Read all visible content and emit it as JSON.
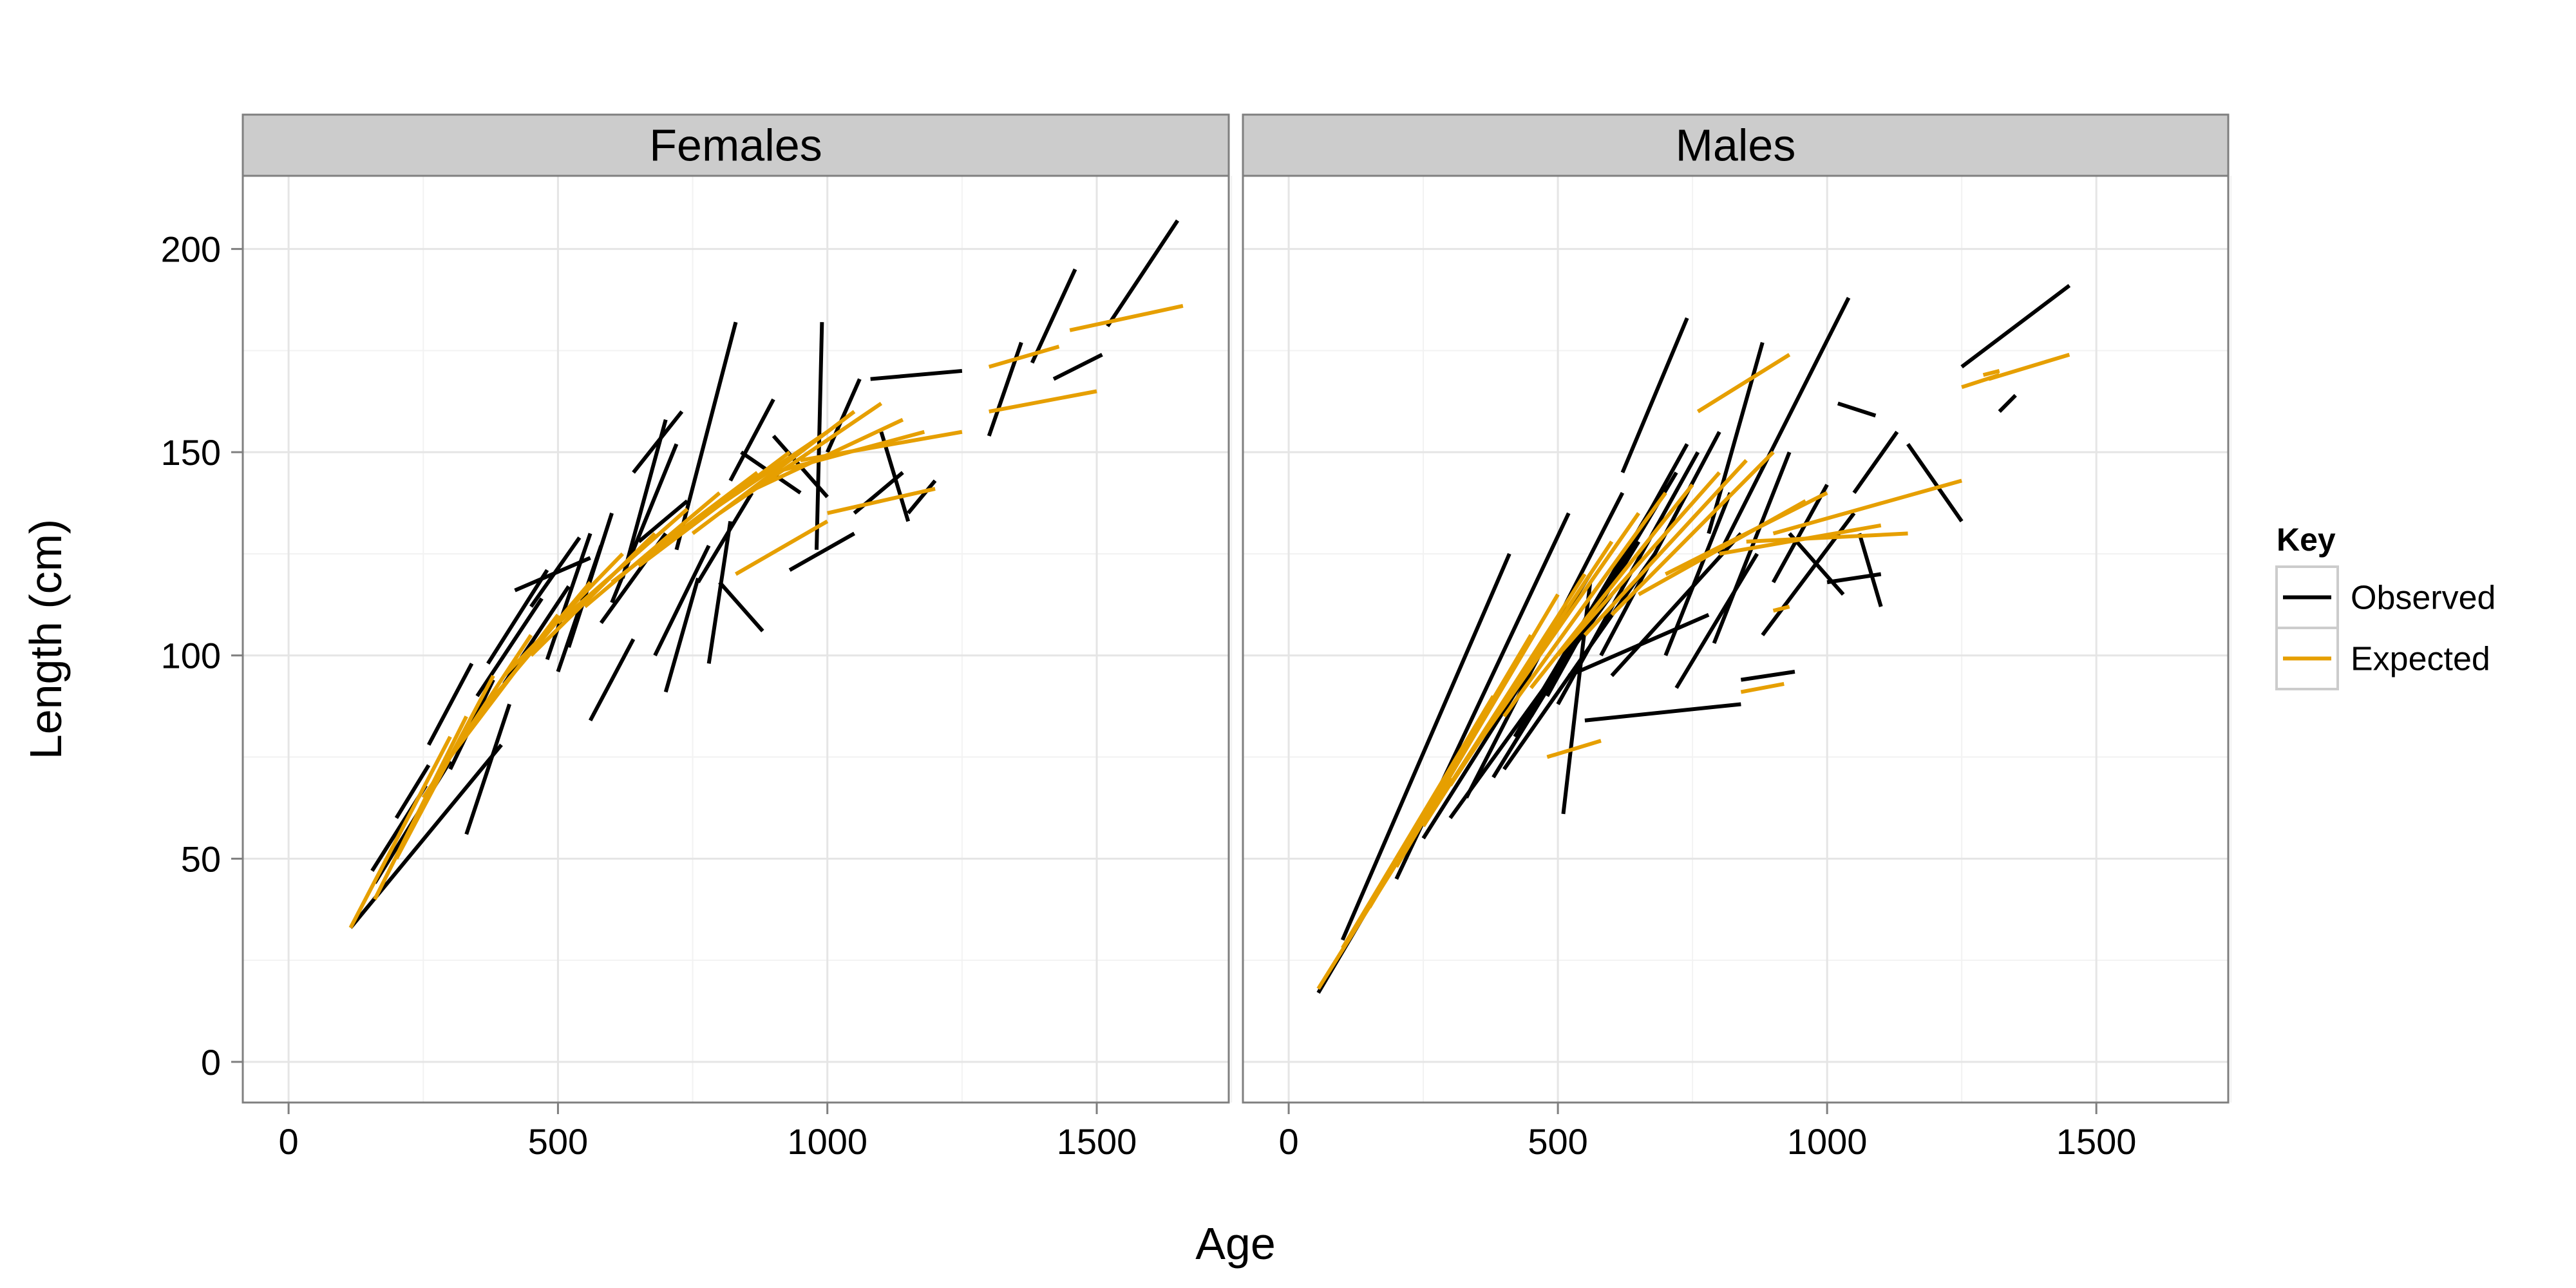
{
  "chart_data": {
    "type": "line",
    "facets": [
      "Females",
      "Males"
    ],
    "xlabel": "Age",
    "ylabel": "Length (cm)",
    "xlim": [
      -85,
      1745
    ],
    "ylim": [
      -10,
      218
    ],
    "x_ticks": [
      0,
      500,
      1000,
      1500
    ],
    "y_ticks": [
      0,
      50,
      100,
      150,
      200
    ],
    "grid": true,
    "legend": {
      "title": "Key",
      "position": "right",
      "entries": [
        {
          "name": "Observed",
          "color": "#000000"
        },
        {
          "name": "Expected",
          "color": "#E69F00"
        }
      ]
    },
    "panels": [
      {
        "name": "Females",
        "observed": [
          [
            [
              115,
              33
            ],
            [
              395,
              78
            ]
          ],
          [
            [
              155,
              47
            ],
            [
              255,
              68
            ]
          ],
          [
            [
              160,
              44
            ],
            [
              300,
              74
            ]
          ],
          [
            [
              200,
              60
            ],
            [
              260,
              73
            ]
          ],
          [
            [
              260,
              78
            ],
            [
              340,
              98
            ]
          ],
          [
            [
              300,
              72
            ],
            [
              380,
              94
            ]
          ],
          [
            [
              330,
              56
            ],
            [
              410,
              88
            ]
          ],
          [
            [
              350,
              90
            ],
            [
              470,
              114
            ]
          ],
          [
            [
              370,
              98
            ],
            [
              480,
              121
            ]
          ],
          [
            [
              400,
              93
            ],
            [
              520,
              117
            ]
          ],
          [
            [
              420,
              116
            ],
            [
              560,
              124
            ]
          ],
          [
            [
              450,
              112
            ],
            [
              540,
              129
            ]
          ],
          [
            [
              480,
              99
            ],
            [
              560,
              130
            ]
          ],
          [
            [
              500,
              96
            ],
            [
              580,
              127
            ]
          ],
          [
            [
              520,
              102
            ],
            [
              600,
              135
            ]
          ],
          [
            [
              560,
              84
            ],
            [
              640,
              104
            ]
          ],
          [
            [
              580,
              108
            ],
            [
              700,
              130
            ]
          ],
          [
            [
              600,
              113
            ],
            [
              720,
              152
            ]
          ],
          [
            [
              620,
              119
            ],
            [
              700,
              158
            ]
          ],
          [
            [
              640,
              145
            ],
            [
              730,
              160
            ]
          ],
          [
            [
              650,
              128
            ],
            [
              740,
              138
            ]
          ],
          [
            [
              680,
              100
            ],
            [
              780,
              127
            ]
          ],
          [
            [
              700,
              91
            ],
            [
              760,
              119
            ]
          ],
          [
            [
              720,
              126
            ],
            [
              830,
              182
            ]
          ],
          [
            [
              760,
              118
            ],
            [
              860,
              140
            ]
          ],
          [
            [
              780,
              98
            ],
            [
              820,
              133
            ]
          ],
          [
            [
              800,
              118
            ],
            [
              880,
              106
            ]
          ],
          [
            [
              820,
              143
            ],
            [
              900,
              163
            ]
          ],
          [
            [
              840,
              150
            ],
            [
              950,
              140
            ]
          ],
          [
            [
              900,
              154
            ],
            [
              1000,
              139
            ]
          ],
          [
            [
              980,
              126
            ],
            [
              990,
              182
            ]
          ],
          [
            [
              930,
              121
            ],
            [
              1050,
              130
            ]
          ],
          [
            [
              1000,
              150
            ],
            [
              1060,
              168
            ]
          ],
          [
            [
              1050,
              135
            ],
            [
              1140,
              145
            ]
          ],
          [
            [
              1100,
              155
            ],
            [
              1150,
              133
            ]
          ],
          [
            [
              1080,
              168
            ],
            [
              1250,
              170
            ]
          ],
          [
            [
              1150,
              135
            ],
            [
              1200,
              143
            ]
          ],
          [
            [
              1300,
              154
            ],
            [
              1360,
              177
            ]
          ],
          [
            [
              1380,
              172
            ],
            [
              1460,
              195
            ]
          ],
          [
            [
              1420,
              168
            ],
            [
              1510,
              174
            ]
          ],
          [
            [
              1520,
              181
            ],
            [
              1650,
              207
            ]
          ]
        ],
        "expected": [
          [
            [
              115,
              33
            ],
            [
              300,
              80
            ]
          ],
          [
            [
              160,
              40
            ],
            [
              330,
              85
            ]
          ],
          [
            [
              200,
              50
            ],
            [
              380,
              95
            ]
          ],
          [
            [
              250,
              65
            ],
            [
              450,
              105
            ]
          ],
          [
            [
              300,
              75
            ],
            [
              500,
              110
            ]
          ],
          [
            [
              350,
              85
            ],
            [
              560,
              118
            ]
          ],
          [
            [
              400,
              95
            ],
            [
              620,
              125
            ]
          ],
          [
            [
              450,
              100
            ],
            [
              680,
              130
            ]
          ],
          [
            [
              500,
              108
            ],
            [
              740,
              136
            ]
          ],
          [
            [
              550,
              112
            ],
            [
              800,
              140
            ]
          ],
          [
            [
              600,
              118
            ],
            [
              870,
              145
            ]
          ],
          [
            [
              650,
              122
            ],
            [
              930,
              150
            ]
          ],
          [
            [
              700,
              128
            ],
            [
              1000,
              155
            ]
          ],
          [
            [
              750,
              130
            ],
            [
              1050,
              160
            ]
          ],
          [
            [
              800,
              135
            ],
            [
              1100,
              162
            ]
          ],
          [
            [
              850,
              140
            ],
            [
              1140,
              158
            ]
          ],
          [
            [
              900,
              145
            ],
            [
              1180,
              155
            ]
          ],
          [
            [
              950,
              148
            ],
            [
              1250,
              155
            ]
          ],
          [
            [
              830,
              120
            ],
            [
              1000,
              133
            ]
          ],
          [
            [
              1000,
              135
            ],
            [
              1200,
              141
            ]
          ],
          [
            [
              1300,
              171
            ],
            [
              1430,
              176
            ]
          ],
          [
            [
              1300,
              160
            ],
            [
              1500,
              165
            ]
          ],
          [
            [
              1450,
              180
            ],
            [
              1660,
              186
            ]
          ]
        ]
      },
      {
        "name": "Males",
        "observed": [
          [
            [
              55,
              17
            ],
            [
              300,
              72
            ]
          ],
          [
            [
              100,
              30
            ],
            [
              410,
              125
            ]
          ],
          [
            [
              200,
              45
            ],
            [
              520,
              135
            ]
          ],
          [
            [
              250,
              55
            ],
            [
              560,
              120
            ]
          ],
          [
            [
              300,
              60
            ],
            [
              600,
              115
            ]
          ],
          [
            [
              330,
              65
            ],
            [
              620,
              140
            ]
          ],
          [
            [
              380,
              70
            ],
            [
              650,
              128
            ]
          ],
          [
            [
              400,
              72
            ],
            [
              680,
              125
            ]
          ],
          [
            [
              420,
              80
            ],
            [
              700,
              142
            ]
          ],
          [
            [
              450,
              85
            ],
            [
              720,
              145
            ]
          ],
          [
            [
              480,
              90
            ],
            [
              740,
              152
            ]
          ],
          [
            [
              500,
              88
            ],
            [
              760,
              150
            ]
          ],
          [
            [
              510,
              61
            ],
            [
              560,
              118
            ]
          ],
          [
            [
              520,
              95
            ],
            [
              780,
              110
            ]
          ],
          [
            [
              550,
              84
            ],
            [
              840,
              88
            ]
          ],
          [
            [
              580,
              100
            ],
            [
              800,
              155
            ]
          ],
          [
            [
              600,
              95
            ],
            [
              840,
              130
            ]
          ],
          [
            [
              620,
              145
            ],
            [
              740,
              183
            ]
          ],
          [
            [
              700,
              100
            ],
            [
              820,
              140
            ]
          ],
          [
            [
              720,
              92
            ],
            [
              870,
              125
            ]
          ],
          [
            [
              780,
              130
            ],
            [
              880,
              177
            ]
          ],
          [
            [
              790,
              103
            ],
            [
              930,
              150
            ]
          ],
          [
            [
              800,
              125
            ],
            [
              1040,
              188
            ]
          ],
          [
            [
              840,
              94
            ],
            [
              940,
              96
            ]
          ],
          [
            [
              880,
              105
            ],
            [
              1050,
              135
            ]
          ],
          [
            [
              900,
              118
            ],
            [
              1000,
              142
            ]
          ],
          [
            [
              930,
              130
            ],
            [
              1030,
              115
            ]
          ],
          [
            [
              1000,
              118
            ],
            [
              1100,
              120
            ]
          ],
          [
            [
              1050,
              140
            ],
            [
              1130,
              155
            ]
          ],
          [
            [
              1060,
              130
            ],
            [
              1100,
              112
            ]
          ],
          [
            [
              1020,
              162
            ],
            [
              1090,
              159
            ]
          ],
          [
            [
              1150,
              152
            ],
            [
              1250,
              133
            ]
          ],
          [
            [
              1250,
              171
            ],
            [
              1450,
              191
            ]
          ],
          [
            [
              1320,
              160
            ],
            [
              1350,
              164
            ]
          ]
        ],
        "expected": [
          [
            [
              55,
              18
            ],
            [
              300,
              70
            ]
          ],
          [
            [
              100,
              28
            ],
            [
              380,
              90
            ]
          ],
          [
            [
              150,
              38
            ],
            [
              450,
              105
            ]
          ],
          [
            [
              200,
              48
            ],
            [
              500,
              115
            ]
          ],
          [
            [
              250,
              58
            ],
            [
              550,
              120
            ]
          ],
          [
            [
              300,
              68
            ],
            [
              600,
              128
            ]
          ],
          [
            [
              350,
              78
            ],
            [
              650,
              135
            ]
          ],
          [
            [
              400,
              85
            ],
            [
              700,
              140
            ]
          ],
          [
            [
              450,
              92
            ],
            [
              750,
              142
            ]
          ],
          [
            [
              500,
              100
            ],
            [
              800,
              145
            ]
          ],
          [
            [
              550,
              105
            ],
            [
              850,
              148
            ]
          ],
          [
            [
              600,
              110
            ],
            [
              900,
              150
            ]
          ],
          [
            [
              650,
              115
            ],
            [
              960,
              138
            ]
          ],
          [
            [
              700,
              120
            ],
            [
              1000,
              140
            ]
          ],
          [
            [
              760,
              160
            ],
            [
              930,
              174
            ]
          ],
          [
            [
              800,
              125
            ],
            [
              1100,
              132
            ]
          ],
          [
            [
              850,
              128
            ],
            [
              1150,
              130
            ]
          ],
          [
            [
              900,
              130
            ],
            [
              1250,
              143
            ]
          ],
          [
            [
              480,
              75
            ],
            [
              580,
              79
            ]
          ],
          [
            [
              840,
              91
            ],
            [
              920,
              93
            ]
          ],
          [
            [
              900,
              111
            ],
            [
              930,
              112
            ]
          ],
          [
            [
              1250,
              166
            ],
            [
              1320,
              169
            ]
          ],
          [
            [
              1290,
              169
            ],
            [
              1320,
              170
            ]
          ],
          [
            [
              1300,
              168
            ],
            [
              1450,
              174
            ]
          ]
        ]
      }
    ]
  }
}
